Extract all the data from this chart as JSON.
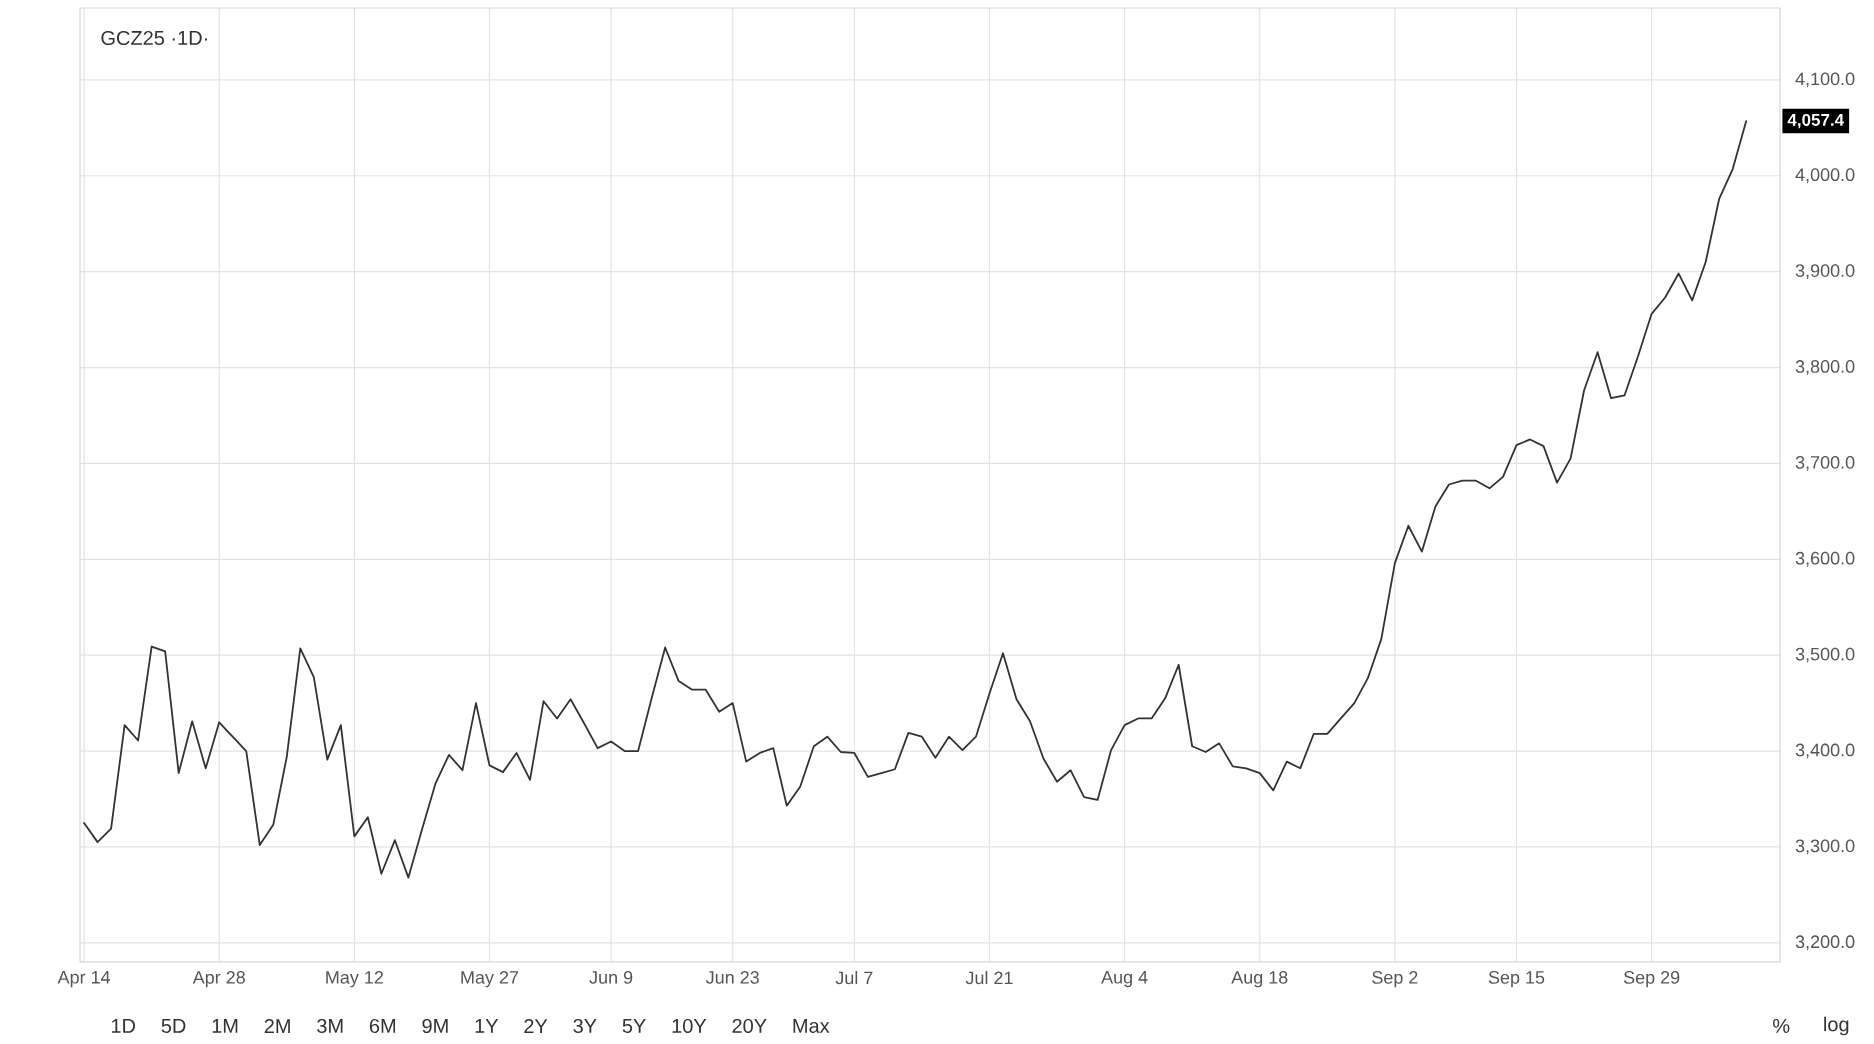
{
  "chart_data": {
    "type": "line",
    "title": "GCZ25 ·1D·",
    "categories": [
      "Apr 14",
      null,
      null,
      null,
      null,
      null,
      null,
      null,
      null,
      null,
      "Apr 28",
      null,
      null,
      null,
      null,
      null,
      null,
      null,
      null,
      null,
      "May 12",
      null,
      null,
      null,
      null,
      null,
      null,
      null,
      null,
      null,
      "May 27",
      null,
      null,
      null,
      null,
      null,
      null,
      null,
      null,
      "Jun 9",
      null,
      null,
      null,
      null,
      null,
      null,
      null,
      null,
      "Jun 23",
      null,
      null,
      null,
      null,
      null,
      null,
      null,
      null,
      "Jul 7",
      null,
      null,
      null,
      null,
      null,
      null,
      null,
      null,
      null,
      "Jul 21",
      null,
      null,
      null,
      null,
      null,
      null,
      null,
      null,
      null,
      "Aug 4",
      null,
      null,
      null,
      null,
      null,
      null,
      null,
      null,
      null,
      "Aug 18",
      null,
      null,
      null,
      null,
      null,
      null,
      null,
      null,
      null,
      "Sep 2",
      null,
      null,
      null,
      null,
      null,
      null,
      null,
      null,
      "Sep 15",
      null,
      null,
      null,
      null,
      null,
      null,
      null,
      null,
      null,
      "Sep 29",
      null,
      null,
      null,
      null,
      null,
      null,
      null
    ],
    "series": [
      {
        "color": "#333333",
        "values": [
          3325,
          3305,
          3319,
          3427,
          3411,
          3509,
          3504,
          3377,
          3431,
          3382,
          3430,
          3415,
          3400,
          3302,
          3323,
          3394,
          3507,
          3477,
          3391,
          3427,
          3311,
          3331,
          3272,
          3307,
          3268,
          3318,
          3366,
          3396,
          3380,
          3450,
          3385,
          3378,
          3398,
          3370,
          3452,
          3434,
          3454,
          3429,
          3403,
          3410,
          3400,
          3400,
          3455,
          3508,
          3473,
          3464,
          3464,
          3441,
          3450,
          3389,
          3398,
          3403,
          3343,
          3363,
          3405,
          3415,
          3399,
          3398,
          3373,
          3377,
          3381,
          3419,
          3415,
          3393,
          3415,
          3401,
          3415,
          3460,
          3502,
          3454,
          3431,
          3392,
          3368,
          3380,
          3352,
          3349,
          3401,
          3427,
          3434,
          3434,
          3455,
          3490,
          3405,
          3399,
          3408,
          3384,
          3382,
          3377,
          3359,
          3389,
          3382,
          3418,
          3418,
          3434,
          3450,
          3476,
          3517,
          3596,
          3635,
          3608,
          3655,
          3678,
          3682,
          3682,
          3674,
          3686,
          3719,
          3725,
          3718,
          3680,
          3705,
          3776,
          3816,
          3768,
          3771,
          3812,
          3856,
          3873,
          3898,
          3870,
          3910,
          3976,
          4007,
          4057
        ]
      }
    ],
    "ylim": [
      3180,
      4175
    ],
    "yticks": [
      {
        "value": 3200,
        "label": "3,200.0"
      },
      {
        "value": 3300,
        "label": "3,300.0"
      },
      {
        "value": 3400,
        "label": "3,400.0"
      },
      {
        "value": 3500,
        "label": "3,500.0"
      },
      {
        "value": 3600,
        "label": "3,600.0"
      },
      {
        "value": 3700,
        "label": "3,700.0"
      },
      {
        "value": 3800,
        "label": "3,800.0"
      },
      {
        "value": 3900,
        "label": "3,900.0"
      },
      {
        "value": 4000,
        "label": "4,000.0"
      },
      {
        "value": 4100,
        "label": "4,100.0"
      }
    ],
    "grid": true,
    "line_style": "solid",
    "annotations": [
      "4,057.4",
      "1D",
      "5D",
      "1M",
      "2M",
      "3M",
      "6M",
      "9M",
      "1Y",
      "2Y",
      "3Y",
      "5Y",
      "10Y",
      "20Y",
      "Max",
      "%",
      "log"
    ]
  }
}
